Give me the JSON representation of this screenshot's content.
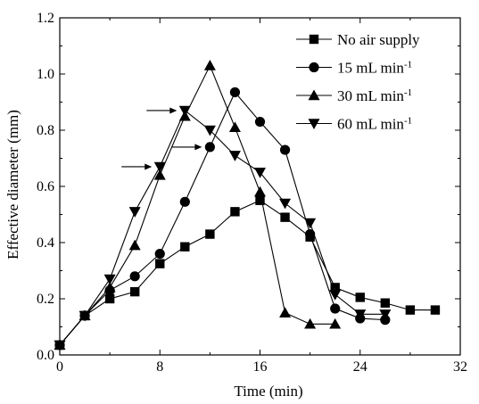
{
  "chart_data": {
    "type": "line",
    "title": "",
    "xlabel": "Time (min)",
    "ylabel": "Effective diameter (mm)",
    "xlim": [
      0,
      32
    ],
    "ylim": [
      0,
      1.2
    ],
    "xticks": [
      0,
      8,
      16,
      24,
      32
    ],
    "yticks": [
      0.0,
      0.2,
      0.4,
      0.6,
      0.8,
      1.0,
      1.2
    ],
    "xtick_labels": [
      "0",
      "8",
      "16",
      "24",
      "32"
    ],
    "ytick_labels": [
      "0.0",
      "0.2",
      "0.4",
      "0.6",
      "0.8",
      "1.0",
      "1.2"
    ],
    "grid": false,
    "legend_position": "top-right",
    "series": [
      {
        "name": "No air supply",
        "marker": "square",
        "x": [
          0,
          2,
          4,
          6,
          8,
          10,
          12,
          14,
          16,
          18,
          20,
          22,
          24,
          26,
          28,
          30
        ],
        "y": [
          0.035,
          0.14,
          0.2,
          0.225,
          0.325,
          0.385,
          0.43,
          0.51,
          0.55,
          0.49,
          0.42,
          0.24,
          0.205,
          0.185,
          0.16,
          0.16
        ]
      },
      {
        "name": "15 mL min",
        "unit_superscript": "-1",
        "marker": "circle",
        "x": [
          0,
          2,
          4,
          6,
          8,
          10,
          12,
          14,
          16,
          18,
          20,
          22,
          24,
          26
        ],
        "y": [
          0.035,
          0.14,
          0.23,
          0.28,
          0.36,
          0.545,
          0.74,
          0.935,
          0.83,
          0.73,
          0.43,
          0.165,
          0.13,
          0.125
        ]
      },
      {
        "name": "30 mL min",
        "unit_superscript": "-1",
        "marker": "triangle-up",
        "x": [
          0,
          2,
          4,
          6,
          8,
          10,
          12,
          14,
          16,
          18,
          20,
          22
        ],
        "y": [
          0.035,
          0.14,
          0.24,
          0.39,
          0.64,
          0.85,
          1.03,
          0.81,
          0.58,
          0.15,
          0.11,
          0.11
        ]
      },
      {
        "name": "60 mL min",
        "unit_superscript": "-1",
        "marker": "triangle-down",
        "x": [
          0,
          2,
          4,
          6,
          8,
          10,
          12,
          14,
          16,
          18,
          20,
          22,
          24,
          26
        ],
        "y": [
          0.035,
          0.14,
          0.27,
          0.51,
          0.67,
          0.87,
          0.8,
          0.71,
          0.65,
          0.54,
          0.47,
          0.215,
          0.145,
          0.145
        ]
      }
    ],
    "annotations": [
      {
        "type": "arrow",
        "points_to": {
          "x": 8,
          "y": 0.67
        }
      },
      {
        "type": "arrow",
        "points_to": {
          "x": 10,
          "y": 0.87
        }
      },
      {
        "type": "arrow",
        "points_to": {
          "x": 12,
          "y": 0.74
        }
      }
    ]
  }
}
